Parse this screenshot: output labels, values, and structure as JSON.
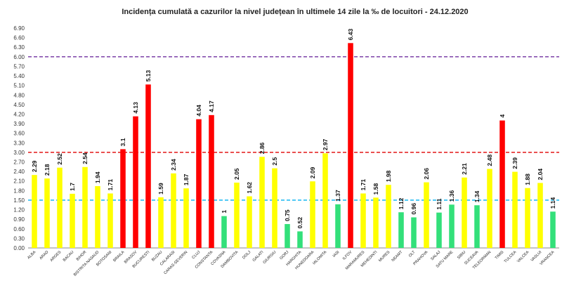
{
  "chart_data": {
    "type": "bar",
    "title": "Incidența cumulată a cazurilor la nivel județean în ultimele 14 zile la ‰ de locuitori - 24.12.2020",
    "xlabel": "",
    "ylabel": "",
    "ylim": [
      0,
      6.9
    ],
    "ytick_step": 0.3,
    "grid": false,
    "legend": "none",
    "categories": [
      "ALBA",
      "ARAD",
      "ARGES",
      "BACAU",
      "BIHOR",
      "BISTRITA NASAUD",
      "BOTOSANI",
      "BRAILA",
      "BRASOV",
      "BUCURESTI",
      "BUZAU",
      "CALARASI",
      "CARAS-SEVERIN",
      "CLUJ",
      "CONSTANTA",
      "COVASNA",
      "DAMBOVITA",
      "DOLJ",
      "GALATI",
      "GIURGIU",
      "GORJ",
      "HARGHITA",
      "HUNEDOARA",
      "IALOMITA",
      "IASI",
      "ILFOV",
      "MARAMURES",
      "MEHEDINTI",
      "MURES",
      "NEAMT",
      "OLT",
      "PRAHOVA",
      "SALAJ",
      "SATU MARE",
      "SIBIU",
      "SUCEAVA",
      "TELEORMAN",
      "TIMIS",
      "TULCEA",
      "VALCEA",
      "VASLUI",
      "VRANCEA"
    ],
    "values": [
      2.29,
      2.18,
      2.52,
      1.7,
      2.54,
      1.94,
      1.71,
      3.1,
      4.13,
      5.13,
      1.59,
      2.34,
      1.87,
      4.04,
      4.17,
      1,
      2.05,
      1.62,
      2.86,
      2.5,
      0.75,
      0.52,
      2.09,
      2.97,
      1.37,
      6.43,
      1.71,
      1.58,
      1.98,
      1.12,
      0.96,
      2.06,
      1.11,
      1.36,
      2.21,
      1.34,
      2.48,
      4,
      2.39,
      1.88,
      2.04,
      1.14
    ],
    "labels": [
      "2.29",
      "2.18",
      "2.52",
      "1.7",
      "2.54",
      "1.94",
      "1.71",
      "3.1",
      "4.13",
      "5.13",
      "1.59",
      "2.34",
      "1.87",
      "4.04",
      "4.17",
      "1",
      "2.05",
      "1.62",
      "2.86",
      "2.5",
      "0.75",
      "0.52",
      "2.09",
      "2.97",
      "1.37",
      "6.43",
      "1.71",
      "1.58",
      "1.98",
      "1.12",
      "0.96",
      "2.06",
      "1.11",
      "1.36",
      "2.21",
      "1.34",
      "2.48",
      "4",
      "2.39",
      "1.88",
      "2.04",
      "1.14"
    ],
    "thresholds": [
      {
        "value": 6.0,
        "color": "#7030a0"
      },
      {
        "value": 3.0,
        "color": "#e00000"
      },
      {
        "value": 1.5,
        "color": "#00b0f0"
      }
    ],
    "bar_colors": {
      "high": "#ff0000",
      "mid": "#ffff00",
      "low": "#33e07a"
    }
  }
}
